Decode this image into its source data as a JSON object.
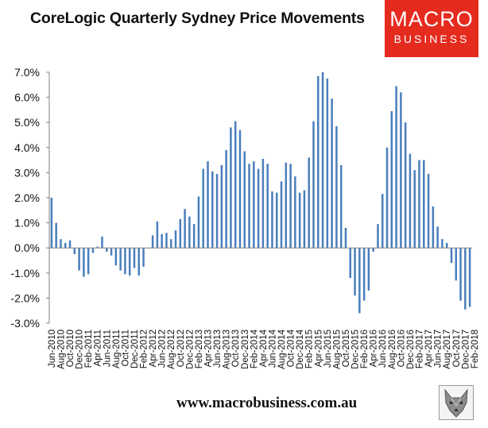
{
  "header": {
    "title": "CoreLogic Quarterly Sydney Price Movements"
  },
  "logo": {
    "line1": "MACRO",
    "line2": "BUSINESS"
  },
  "footer": {
    "url": "www.macrobusiness.com.au"
  },
  "colors": {
    "bar": "#4a7ebb",
    "axis": "#808080",
    "logo_bg": "#e52a1e"
  },
  "icons": {
    "logo": "macrobusiness-logo",
    "wolf": "wolf-icon"
  },
  "chart_data": {
    "type": "bar",
    "ylim": [
      -3.0,
      7.0
    ],
    "ytick_values": [
      -3.0,
      -2.0,
      -1.0,
      0.0,
      1.0,
      2.0,
      3.0,
      4.0,
      5.0,
      6.0,
      7.0
    ],
    "yticks": [
      "-3.0%",
      "-2.0%",
      "-1.0%",
      "0.0%",
      "1.0%",
      "2.0%",
      "3.0%",
      "4.0%",
      "5.0%",
      "6.0%",
      "7.0%"
    ],
    "xticks": [
      "Jun-2010",
      "Aug-2010",
      "Oct-2010",
      "Dec-2010",
      "Feb-2011",
      "Apr-2011",
      "Jun-2011",
      "Aug-2011",
      "Oct-2011",
      "Dec-2011",
      "Feb-2012",
      "Apr-2012",
      "Jun-2012",
      "Aug-2012",
      "Oct-2012",
      "Dec-2012",
      "Feb-2013",
      "Apr-2013",
      "Jun-2013",
      "Aug-2013",
      "Oct-2013",
      "Dec-2013",
      "Feb-2014",
      "Apr-2014",
      "Jun-2014",
      "Aug-2014",
      "Oct-2014",
      "Dec-2014",
      "Feb-2015",
      "Apr-2015",
      "Jun-2015",
      "Aug-2015",
      "Oct-2015",
      "Dec-2015",
      "Feb-2016",
      "Apr-2016",
      "Jun-2016",
      "Aug-2016",
      "Oct-2016",
      "Dec-2016",
      "Feb-2017",
      "Apr-2017",
      "Jun-2017",
      "Aug-2017",
      "Oct-2017",
      "Dec-2017",
      "Feb-2018"
    ],
    "start_month": "Jun-2010",
    "end_month": "Feb-2018",
    "series": [
      {
        "values": [
          2.0,
          1.0,
          0.35,
          0.2,
          0.3,
          -0.25,
          -0.9,
          -1.15,
          -1.05,
          -0.2,
          0.05,
          0.45,
          -0.15,
          -0.3,
          -0.7,
          -0.9,
          -1.05,
          -1.1,
          -0.8,
          -1.1,
          -0.75,
          0.0,
          0.5,
          1.05,
          0.55,
          0.6,
          0.35,
          0.7,
          1.15,
          1.55,
          1.25,
          0.95,
          2.05,
          3.15,
          3.45,
          3.05,
          2.95,
          3.3,
          3.9,
          4.8,
          5.05,
          4.7,
          3.85,
          3.35,
          3.45,
          3.15,
          3.55,
          3.35,
          2.25,
          2.2,
          2.65,
          3.4,
          3.35,
          2.85,
          2.2,
          2.3,
          3.6,
          5.05,
          6.85,
          7.0,
          6.75,
          5.95,
          4.85,
          3.3,
          0.8,
          -1.2,
          -1.9,
          -2.6,
          -2.1,
          -1.7,
          -0.15,
          0.95,
          2.15,
          4.0,
          5.45,
          6.45,
          6.2,
          5.0,
          3.75,
          3.1,
          3.5,
          3.5,
          2.95,
          1.65,
          0.85,
          0.35,
          0.2,
          -0.6,
          -1.3,
          -2.1,
          -2.45,
          -2.35
        ]
      }
    ]
  }
}
